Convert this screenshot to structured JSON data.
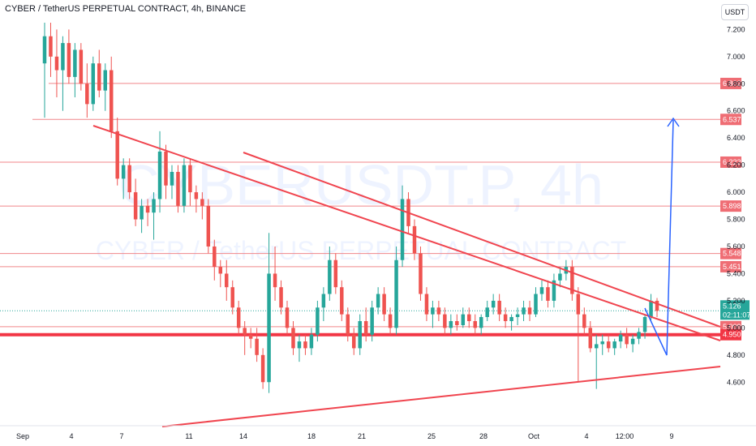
{
  "header": {
    "title": "CYBER / TetherUS PERPETUAL CONTRACT, 4h, BINANCE",
    "unit_button": "USDT"
  },
  "watermark": {
    "symbol": "CYBERUSDT.P, 4h",
    "name": "CYBER / TetherUS PERPETUAL CONTRACT"
  },
  "chart_data": {
    "type": "candlestick",
    "x_ticks": [
      "Sep",
      "4",
      "7",
      "11",
      "14",
      "18",
      "21",
      "25",
      "28",
      "Oct",
      "4",
      "12:00",
      "9"
    ],
    "y_ticks": [
      "7.200",
      "7.000",
      "6.800",
      "6.600",
      "6.400",
      "6.200",
      "6.000",
      "5.800",
      "5.600",
      "5.400",
      "5.200",
      "5.000",
      "4.800",
      "4.600"
    ],
    "ylim": [
      4.47,
      7.25
    ],
    "horizontal_levels": [
      6.802,
      6.537,
      6.222,
      5.898,
      5.548,
      5.451,
      5.009,
      4.95
    ],
    "level_labels": [
      "6.802",
      "6.537",
      "6.222",
      "5.898",
      "5.548",
      "5.451",
      "5.009",
      "4.950"
    ],
    "current_price": {
      "label": "5.126",
      "countdown": "02:11:07",
      "value": 5.126
    },
    "colors": {
      "up": "#26a69a",
      "down": "#ef5350",
      "levels": "#f0868a",
      "support": "#f23645",
      "projection": "#2962ff",
      "trendline": "#f0454f"
    },
    "candles": [
      [
        6.95,
        7.25,
        6.55,
        7.15
      ],
      [
        7.15,
        7.25,
        6.85,
        7.0
      ],
      [
        7.0,
        7.2,
        6.7,
        6.9
      ],
      [
        6.9,
        7.15,
        6.6,
        7.1
      ],
      [
        7.1,
        7.2,
        6.8,
        6.85
      ],
      [
        6.85,
        7.1,
        6.7,
        7.05
      ],
      [
        7.05,
        7.1,
        6.75,
        6.8
      ],
      [
        6.8,
        6.95,
        6.55,
        6.65
      ],
      [
        6.65,
        7.0,
        6.6,
        6.95
      ],
      [
        6.95,
        7.05,
        6.7,
        6.75
      ],
      [
        6.75,
        6.95,
        6.6,
        6.9
      ],
      [
        6.9,
        7.0,
        6.4,
        6.45
      ],
      [
        6.45,
        6.55,
        6.05,
        6.1
      ],
      [
        6.1,
        6.25,
        5.95,
        6.2
      ],
      [
        6.2,
        6.25,
        5.95,
        6.0
      ],
      [
        6.0,
        6.1,
        5.75,
        5.8
      ],
      [
        5.8,
        5.95,
        5.7,
        5.9
      ],
      [
        5.9,
        5.95,
        5.75,
        5.85
      ],
      [
        5.85,
        6.0,
        5.65,
        5.95
      ],
      [
        5.95,
        6.45,
        5.85,
        6.3
      ],
      [
        6.3,
        6.35,
        5.95,
        6.05
      ],
      [
        6.05,
        6.2,
        5.95,
        6.15
      ],
      [
        6.15,
        6.2,
        5.85,
        5.9
      ],
      [
        5.9,
        6.25,
        5.85,
        6.2
      ],
      [
        6.2,
        6.25,
        5.9,
        6.0
      ],
      [
        6.0,
        6.05,
        5.85,
        5.95
      ],
      [
        5.95,
        6.0,
        5.8,
        5.9
      ],
      [
        5.9,
        5.95,
        5.55,
        5.6
      ],
      [
        5.6,
        5.65,
        5.35,
        5.45
      ],
      [
        5.45,
        5.5,
        5.3,
        5.4
      ],
      [
        5.4,
        5.5,
        5.2,
        5.3
      ],
      [
        5.3,
        5.35,
        5.1,
        5.15
      ],
      [
        5.15,
        5.2,
        4.95,
        5.0
      ],
      [
        5.0,
        5.05,
        4.8,
        4.95
      ],
      [
        4.95,
        5.0,
        4.85,
        4.92
      ],
      [
        4.92,
        5.0,
        4.75,
        4.8
      ],
      [
        4.8,
        4.85,
        4.55,
        4.6
      ],
      [
        4.6,
        5.7,
        4.52,
        5.4
      ],
      [
        5.4,
        5.6,
        5.2,
        5.3
      ],
      [
        5.3,
        5.35,
        5.1,
        5.15
      ],
      [
        5.15,
        5.2,
        4.95,
        5.0
      ],
      [
        5.0,
        5.05,
        4.8,
        4.85
      ],
      [
        4.85,
        4.95,
        4.75,
        4.9
      ],
      [
        4.9,
        4.95,
        4.8,
        4.85
      ],
      [
        4.85,
        5.0,
        4.8,
        4.95
      ],
      [
        4.95,
        5.2,
        4.9,
        5.15
      ],
      [
        5.15,
        5.3,
        5.05,
        5.25
      ],
      [
        5.25,
        5.6,
        5.2,
        5.5
      ],
      [
        5.5,
        5.55,
        5.25,
        5.3
      ],
      [
        5.3,
        5.35,
        5.05,
        5.1
      ],
      [
        5.1,
        5.15,
        4.9,
        4.95
      ],
      [
        4.95,
        5.0,
        4.8,
        4.85
      ],
      [
        4.85,
        5.1,
        4.8,
        5.05
      ],
      [
        5.05,
        5.15,
        4.9,
        4.95
      ],
      [
        4.95,
        5.2,
        4.9,
        5.15
      ],
      [
        5.15,
        5.3,
        5.1,
        5.25
      ],
      [
        5.25,
        5.3,
        5.05,
        5.1
      ],
      [
        5.1,
        5.15,
        4.95,
        5.0
      ],
      [
        5.0,
        5.6,
        4.95,
        5.5
      ],
      [
        5.5,
        6.05,
        5.45,
        5.95
      ],
      [
        5.95,
        6.0,
        5.7,
        5.75
      ],
      [
        5.75,
        5.8,
        5.5,
        5.55
      ],
      [
        5.55,
        5.6,
        5.2,
        5.25
      ],
      [
        5.25,
        5.3,
        5.05,
        5.1
      ],
      [
        5.1,
        5.2,
        5.0,
        5.15
      ],
      [
        5.15,
        5.2,
        5.05,
        5.1
      ],
      [
        5.1,
        5.15,
        4.95,
        5.0
      ],
      [
        5.0,
        5.1,
        4.95,
        5.05
      ],
      [
        5.05,
        5.1,
        4.98,
        5.02
      ],
      [
        5.02,
        5.15,
        5.0,
        5.1
      ],
      [
        5.1,
        5.15,
        5.0,
        5.05
      ],
      [
        5.05,
        5.1,
        4.95,
        5.0
      ],
      [
        5.0,
        5.1,
        4.95,
        5.08
      ],
      [
        5.08,
        5.2,
        5.05,
        5.15
      ],
      [
        5.15,
        5.25,
        5.1,
        5.2
      ],
      [
        5.2,
        5.25,
        5.05,
        5.1
      ],
      [
        5.1,
        5.15,
        5.0,
        5.05
      ],
      [
        5.05,
        5.1,
        4.98,
        5.08
      ],
      [
        5.08,
        5.15,
        5.02,
        5.1
      ],
      [
        5.1,
        5.2,
        5.05,
        5.15
      ],
      [
        5.15,
        5.2,
        5.05,
        5.1
      ],
      [
        5.1,
        5.3,
        5.08,
        5.25
      ],
      [
        5.25,
        5.35,
        5.2,
        5.3
      ],
      [
        5.3,
        5.35,
        5.15,
        5.2
      ],
      [
        5.2,
        5.4,
        5.15,
        5.35
      ],
      [
        5.35,
        5.45,
        5.3,
        5.4
      ],
      [
        5.4,
        5.5,
        5.35,
        5.45
      ],
      [
        5.45,
        5.5,
        5.2,
        5.25
      ],
      [
        5.25,
        5.3,
        4.6,
        5.1
      ],
      [
        5.1,
        5.15,
        4.95,
        5.0
      ],
      [
        5.0,
        5.05,
        4.82,
        4.85
      ],
      [
        4.85,
        4.95,
        4.55,
        4.88
      ],
      [
        4.88,
        4.95,
        4.8,
        4.9
      ],
      [
        4.9,
        4.95,
        4.82,
        4.85
      ],
      [
        4.85,
        4.92,
        4.8,
        4.9
      ],
      [
        4.9,
        4.98,
        4.85,
        4.95
      ],
      [
        4.95,
        5.0,
        4.85,
        4.88
      ],
      [
        4.88,
        4.95,
        4.82,
        4.92
      ],
      [
        4.92,
        5.0,
        4.88,
        4.97
      ],
      [
        4.97,
        5.1,
        4.92,
        5.08
      ],
      [
        5.08,
        5.25,
        5.05,
        5.2
      ],
      [
        5.2,
        5.22,
        5.08,
        5.126
      ]
    ]
  }
}
